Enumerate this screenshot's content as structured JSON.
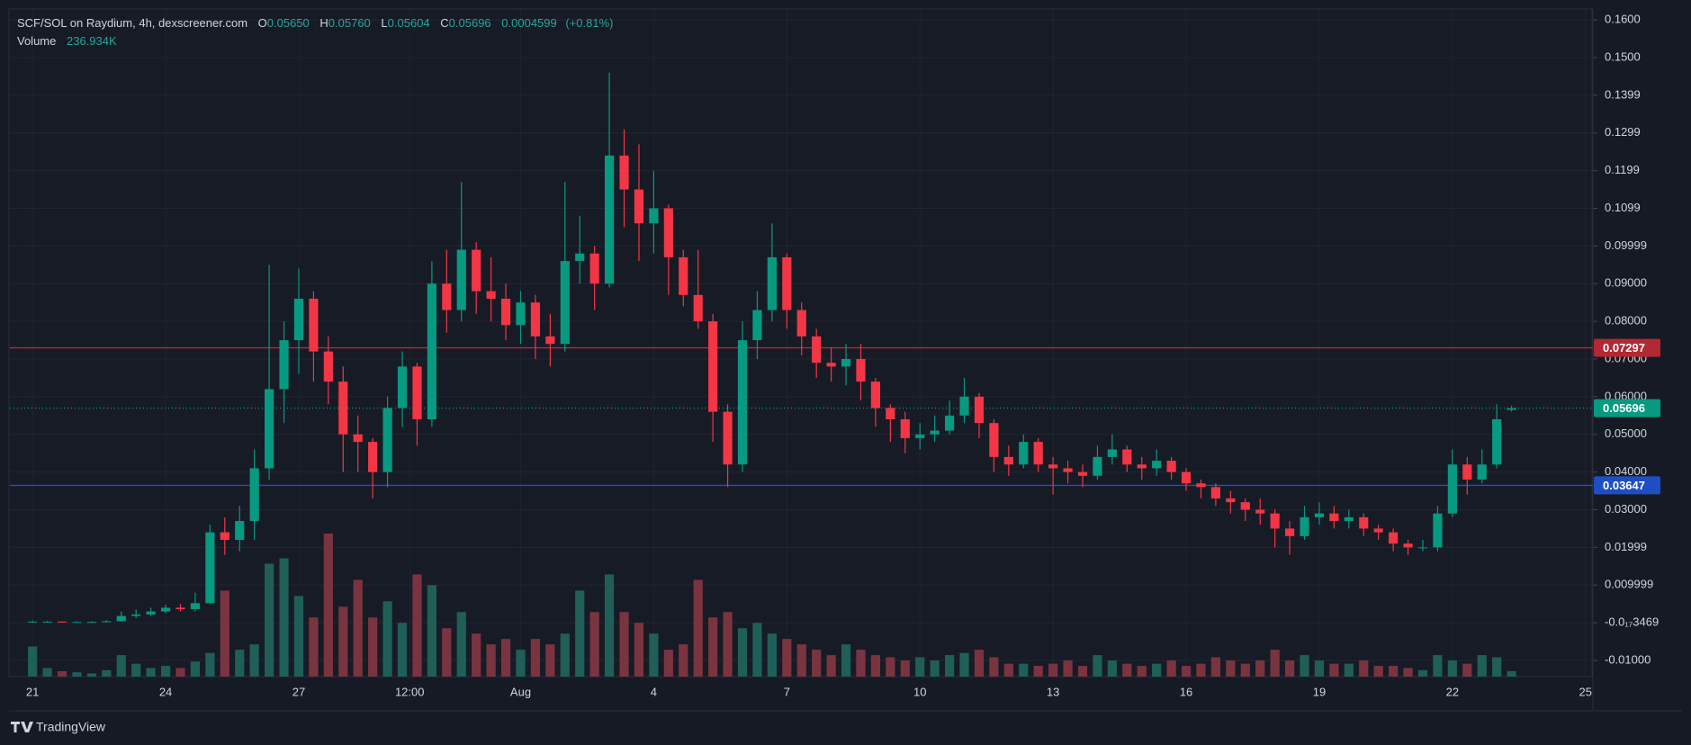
{
  "chart_data": {
    "type": "candlestick",
    "title": "SCF/SOL on Raydium, 4h, dexscreener.com",
    "ohlc_legend": [
      {
        "key": "O",
        "value": "0.05650"
      },
      {
        "key": "H",
        "value": "0.05760"
      },
      {
        "key": "L",
        "value": "0.05604"
      },
      {
        "key": "C",
        "value": "0.05696"
      }
    ],
    "change": "0.0004599",
    "change_pct": "(+0.81%)",
    "volume_title": "Volume",
    "volume_value": "236.934K",
    "logo": "TradingView",
    "up_color": "#089981",
    "down_color": "#f23645",
    "volume_up_color": "#1f5f58",
    "volume_down_color": "#7a3440",
    "grid": true,
    "xlim": [
      -4.4,
      211
    ],
    "ylim": [
      -0.0143,
      0.1629
    ],
    "xticks": [
      {
        "value": 0,
        "label": "21"
      },
      {
        "value": 18,
        "label": "24"
      },
      {
        "value": 36,
        "label": "27"
      },
      {
        "value": 51,
        "label": "12:00"
      },
      {
        "value": 66,
        "label": "Aug"
      },
      {
        "value": 84,
        "label": "4"
      },
      {
        "value": 102,
        "label": "7"
      },
      {
        "value": 120,
        "label": "10"
      },
      {
        "value": 138,
        "label": "13"
      },
      {
        "value": 156,
        "label": "16"
      },
      {
        "value": 174,
        "label": "19"
      },
      {
        "value": 192,
        "label": "22"
      },
      {
        "value": 210,
        "label": "25"
      }
    ],
    "yticks": [
      {
        "value": 0.16,
        "label": "0.1600"
      },
      {
        "value": 0.15,
        "label": "0.1500"
      },
      {
        "value": 0.14,
        "label": "0.1399"
      },
      {
        "value": 0.13,
        "label": "0.1299"
      },
      {
        "value": 0.12,
        "label": "0.1199"
      },
      {
        "value": 0.11,
        "label": "0.1099"
      },
      {
        "value": 0.1,
        "label": "0.09999"
      },
      {
        "value": 0.09,
        "label": "0.09000"
      },
      {
        "value": 0.08,
        "label": "0.08000"
      },
      {
        "value": 0.07,
        "label": "0.07000"
      },
      {
        "value": 0.06,
        "label": "0.06000"
      },
      {
        "value": 0.05,
        "label": "0.05000"
      },
      {
        "value": 0.04,
        "label": "0.04000"
      },
      {
        "value": 0.03,
        "label": "0.03000"
      },
      {
        "value": 0.02,
        "label": "0.01999"
      },
      {
        "value": 0.01,
        "label": "0.009999"
      },
      {
        "value": 0,
        "label": "-0.0₁₇3469"
      },
      {
        "value": -0.01,
        "label": "-0.01000"
      }
    ],
    "price_lines": [
      {
        "value": 0.07297,
        "color": "#b22833",
        "style": "solid"
      },
      {
        "value": 0.05696,
        "color": "#089981",
        "style": "dotted"
      },
      {
        "value": 0.03647,
        "color": "#1e4fc2",
        "style": "solid"
      }
    ],
    "x": [
      0,
      2,
      4,
      6,
      8,
      10,
      12,
      14,
      16,
      18,
      20,
      22,
      24,
      26,
      28,
      30,
      32,
      34,
      36,
      38,
      40,
      42,
      44,
      46,
      48,
      50,
      52,
      54,
      56,
      58,
      60,
      62,
      64,
      66,
      68,
      70,
      72,
      74,
      76,
      78,
      80,
      82,
      84,
      86,
      88,
      90,
      92,
      94,
      96,
      98,
      100,
      102,
      104,
      106,
      108,
      110,
      112,
      114,
      116,
      118,
      120,
      122,
      124,
      126,
      128,
      130,
      132,
      134,
      136,
      138,
      140,
      142,
      144,
      146,
      148,
      150,
      152,
      154,
      156,
      158,
      160,
      162,
      164,
      166,
      168,
      170,
      172,
      174,
      176,
      178,
      180,
      182,
      184,
      186,
      188,
      190,
      192,
      194,
      196,
      198,
      200
    ],
    "open": [
      0.0003,
      0.0003,
      0.0003,
      0.0002,
      0.0002,
      0.0002,
      0.0004,
      0.0018,
      0.0022,
      0.003,
      0.004,
      0.0036,
      0.0052,
      0.024,
      0.022,
      0.027,
      0.041,
      0.062,
      0.075,
      0.086,
      0.072,
      0.064,
      0.05,
      0.048,
      0.04,
      0.057,
      0.068,
      0.054,
      0.09,
      0.083,
      0.099,
      0.088,
      0.086,
      0.079,
      0.085,
      0.076,
      0.074,
      0.096,
      0.098,
      0.09,
      0.124,
      0.115,
      0.106,
      0.11,
      0.097,
      0.087,
      0.08,
      0.056,
      0.042,
      0.075,
      0.083,
      0.097,
      0.083,
      0.076,
      0.069,
      0.068,
      0.07,
      0.064,
      0.057,
      0.054,
      0.049,
      0.05,
      0.051,
      0.055,
      0.06,
      0.053,
      0.044,
      0.042,
      0.048,
      0.042,
      0.041,
      0.04,
      0.039,
      0.044,
      0.046,
      0.042,
      0.041,
      0.043,
      0.04,
      0.037,
      0.036,
      0.033,
      0.032,
      0.03,
      0.029,
      0.025,
      0.023,
      0.028,
      0.029,
      0.027,
      0.028,
      0.025,
      0.024,
      0.021,
      0.02,
      0.02,
      0.029,
      0.042,
      0.038,
      0.042,
      0.0565
    ],
    "high": [
      0.0006,
      0.0005,
      0.0004,
      0.0004,
      0.0004,
      0.0007,
      0.003,
      0.0035,
      0.004,
      0.0048,
      0.005,
      0.008,
      0.026,
      0.028,
      0.031,
      0.046,
      0.095,
      0.08,
      0.094,
      0.088,
      0.076,
      0.068,
      0.055,
      0.049,
      0.06,
      0.072,
      0.069,
      0.096,
      0.099,
      0.117,
      0.101,
      0.097,
      0.09,
      0.088,
      0.087,
      0.082,
      0.117,
      0.108,
      0.1,
      0.146,
      0.131,
      0.127,
      0.12,
      0.111,
      0.099,
      0.099,
      0.082,
      0.058,
      0.08,
      0.088,
      0.106,
      0.098,
      0.085,
      0.078,
      0.073,
      0.074,
      0.074,
      0.065,
      0.058,
      0.056,
      0.053,
      0.055,
      0.059,
      0.065,
      0.061,
      0.054,
      0.047,
      0.05,
      0.049,
      0.044,
      0.043,
      0.042,
      0.047,
      0.05,
      0.047,
      0.044,
      0.046,
      0.044,
      0.041,
      0.038,
      0.037,
      0.035,
      0.033,
      0.033,
      0.03,
      0.027,
      0.031,
      0.032,
      0.031,
      0.03,
      0.029,
      0.026,
      0.025,
      0.022,
      0.022,
      0.031,
      0.046,
      0.044,
      0.046,
      0.058,
      0.0576
    ],
    "low": [
      0.0001,
      0.0001,
      0.0001,
      0.0001,
      0.0001,
      0.0001,
      0.0003,
      0.0012,
      0.0018,
      0.0025,
      0.003,
      0.003,
      0.005,
      0.018,
      0.019,
      0.022,
      0.038,
      0.053,
      0.066,
      0.064,
      0.058,
      0.04,
      0.04,
      0.033,
      0.036,
      0.052,
      0.047,
      0.052,
      0.077,
      0.08,
      0.082,
      0.08,
      0.075,
      0.074,
      0.07,
      0.068,
      0.072,
      0.09,
      0.083,
      0.089,
      0.105,
      0.096,
      0.098,
      0.087,
      0.084,
      0.078,
      0.048,
      0.036,
      0.04,
      0.07,
      0.08,
      0.078,
      0.071,
      0.065,
      0.064,
      0.063,
      0.059,
      0.052,
      0.048,
      0.045,
      0.046,
      0.048,
      0.05,
      0.053,
      0.049,
      0.04,
      0.039,
      0.041,
      0.04,
      0.034,
      0.037,
      0.036,
      0.038,
      0.042,
      0.04,
      0.038,
      0.039,
      0.038,
      0.035,
      0.033,
      0.031,
      0.029,
      0.027,
      0.026,
      0.02,
      0.018,
      0.022,
      0.026,
      0.025,
      0.025,
      0.023,
      0.022,
      0.019,
      0.018,
      0.019,
      0.019,
      0.028,
      0.034,
      0.037,
      0.041,
      0.05604
    ],
    "close": [
      0.0003,
      0.0003,
      0.0002,
      0.0002,
      0.0002,
      0.0004,
      0.0018,
      0.0022,
      0.003,
      0.004,
      0.0036,
      0.0052,
      0.024,
      0.022,
      0.027,
      0.041,
      0.062,
      0.075,
      0.086,
      0.072,
      0.064,
      0.05,
      0.048,
      0.04,
      0.057,
      0.068,
      0.054,
      0.09,
      0.083,
      0.099,
      0.088,
      0.086,
      0.079,
      0.085,
      0.076,
      0.074,
      0.096,
      0.098,
      0.09,
      0.124,
      0.115,
      0.106,
      0.11,
      0.097,
      0.087,
      0.08,
      0.056,
      0.042,
      0.075,
      0.083,
      0.097,
      0.083,
      0.076,
      0.069,
      0.068,
      0.07,
      0.064,
      0.057,
      0.054,
      0.049,
      0.05,
      0.051,
      0.055,
      0.06,
      0.053,
      0.044,
      0.042,
      0.048,
      0.042,
      0.041,
      0.04,
      0.039,
      0.044,
      0.046,
      0.042,
      0.041,
      0.043,
      0.04,
      0.037,
      0.036,
      0.033,
      0.032,
      0.03,
      0.029,
      0.025,
      0.023,
      0.028,
      0.029,
      0.027,
      0.028,
      0.025,
      0.024,
      0.021,
      0.02,
      0.02,
      0.029,
      0.042,
      0.038,
      0.042,
      0.054,
      0.05696
    ],
    "volume": [
      1316000,
      376000,
      235000,
      188000,
      141000,
      282000,
      940000,
      564000,
      376000,
      470000,
      376000,
      658000,
      1034000,
      3760000,
      1175000,
      1410000,
      4935000,
      5170000,
      3525000,
      2585000,
      6251000,
      3055000,
      4230000,
      2585000,
      3290000,
      2350000,
      4465000,
      3995000,
      2115000,
      2820000,
      1880000,
      1410000,
      1645000,
      1175000,
      1645000,
      1410000,
      1880000,
      3760000,
      2820000,
      4465000,
      2820000,
      2350000,
      1880000,
      1175000,
      1410000,
      4230000,
      2585000,
      2820000,
      2115000,
      2350000,
      1880000,
      1645000,
      1410000,
      1175000,
      940000,
      1410000,
      1175000,
      940000,
      846000,
      705000,
      846000,
      705000,
      940000,
      1034000,
      1175000,
      846000,
      564000,
      564000,
      470000,
      564000,
      705000,
      470000,
      940000,
      705000,
      564000,
      470000,
      564000,
      705000,
      470000,
      564000,
      846000,
      705000,
      564000,
      705000,
      1175000,
      705000,
      940000,
      705000,
      564000,
      564000,
      705000,
      470000,
      470000,
      376000,
      282000,
      940000,
      705000,
      564000,
      940000,
      846000,
      236934
    ]
  }
}
